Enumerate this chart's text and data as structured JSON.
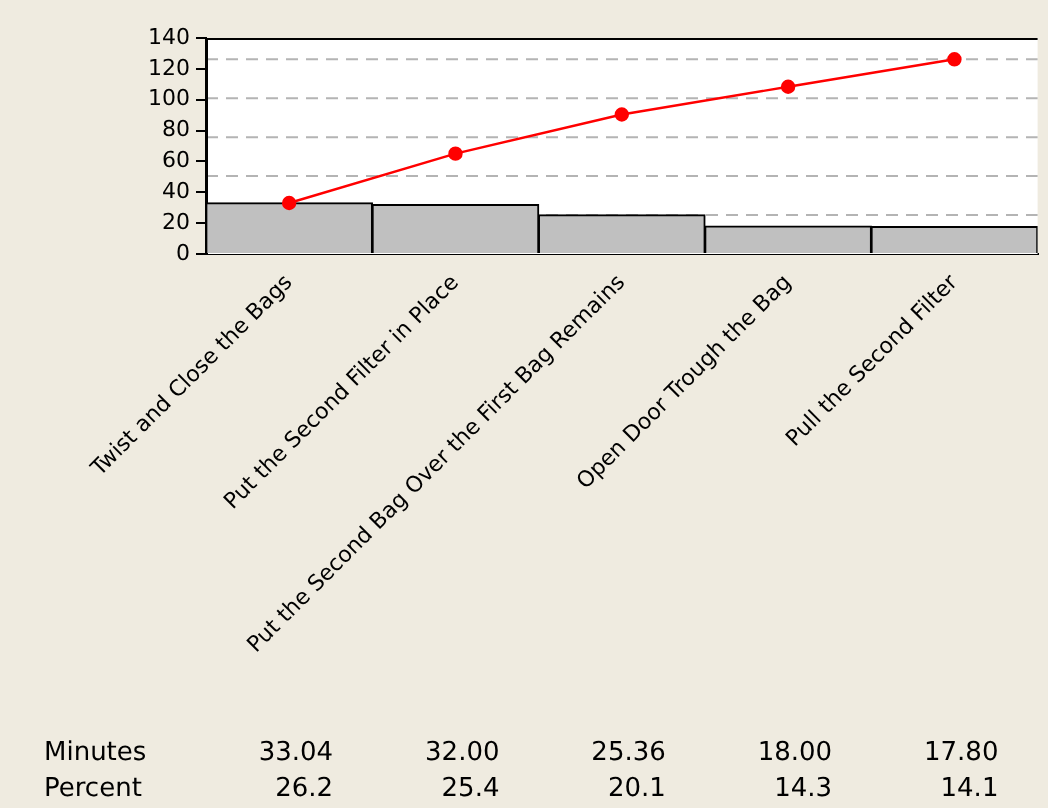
{
  "chart_data": {
    "type": "bar",
    "categories": [
      "Twist and Close the Bags",
      "Put the Second Filter in Place",
      "Put the Second Bag Over the First Bag Remains",
      "Open Door Trough the Bag",
      "Pull the Second Filter"
    ],
    "series": [
      {
        "name": "Minutes",
        "color": "#c0c0c0",
        "values": [
          33.04,
          32.0,
          25.36,
          18.0,
          17.8
        ],
        "value_labels": [
          "33.04",
          "32.00",
          "25.36",
          "18.00",
          "17.80"
        ]
      },
      {
        "type": "line",
        "color": "#ff0000",
        "marker": "circle",
        "line_style": "solid",
        "values": [
          33.04,
          65.04,
          90.4,
          108.4,
          126.2
        ]
      }
    ],
    "ylim": [
      0,
      140
    ],
    "yticks": [
      0,
      20,
      40,
      60,
      80,
      100,
      120,
      140
    ],
    "grid": false,
    "legend": false,
    "ref_lines": [
      {
        "axis": "y",
        "value": 25.24,
        "color": "#b4b4b4",
        "line_style": "dashed"
      },
      {
        "axis": "y",
        "value": 50.48,
        "color": "#b4b4b4",
        "line_style": "dashed"
      },
      {
        "axis": "y",
        "value": 75.72,
        "color": "#b4b4b4",
        "line_style": "dashed"
      },
      {
        "axis": "y",
        "value": 100.96,
        "color": "#b4b4b4",
        "line_style": "dashed"
      },
      {
        "axis": "y",
        "value": 126.2,
        "color": "#b4b4b4",
        "line_style": "dashed"
      }
    ],
    "annotations": [
      "Percent",
      "26.2",
      "25.4",
      "20.1",
      "14.3",
      "14.1"
    ]
  }
}
